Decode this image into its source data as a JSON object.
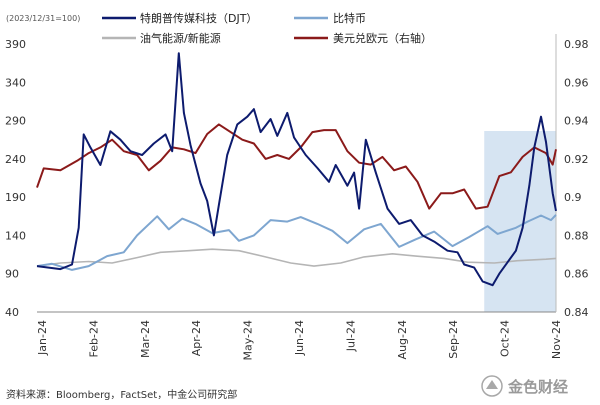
{
  "chart_data": {
    "type": "line",
    "note": "(2023/12/31=100)",
    "source": "资料来源：Bloomberg，FactSet，中金公司研究部",
    "watermark": "金色财经",
    "colors": {
      "djt": "#0d1b6e",
      "btc": "#7ea6d0",
      "energy": "#b5b5b5",
      "eurusd": "#8b1a1a",
      "shade": "#d6e4f2"
    },
    "left_axis": {
      "min": 40,
      "max": 390,
      "ticks": [
        "390",
        "340",
        "290",
        "240",
        "190",
        "140",
        "90",
        "40"
      ]
    },
    "right_axis": {
      "min": 0.84,
      "max": 0.98,
      "ticks": [
        "0.98",
        "0.96",
        "0.94",
        "0.92",
        "0.9",
        "0.88",
        "0.86",
        "0.84"
      ]
    },
    "x_labels": [
      "Jan-24",
      "Feb-24",
      "Mar-24",
      "Apr-24",
      "May-24",
      "Jun-24",
      "Jul-24",
      "Aug-24",
      "Sep-24",
      "Oct-24",
      "Nov-24"
    ],
    "shaded_range": [
      "2024-09-25",
      "2024-11-07"
    ],
    "series": [
      {
        "key": "djt",
        "name": "特朗普传媒科技（DJT）",
        "axis": "left",
        "points": [
          [
            "2024-01-01",
            100
          ],
          [
            "2024-01-08",
            98
          ],
          [
            "2024-01-15",
            96
          ],
          [
            "2024-01-22",
            102
          ],
          [
            "2024-01-26",
            150
          ],
          [
            "2024-01-29",
            272
          ],
          [
            "2024-02-02",
            255
          ],
          [
            "2024-02-08",
            232
          ],
          [
            "2024-02-14",
            276
          ],
          [
            "2024-02-20",
            265
          ],
          [
            "2024-02-26",
            250
          ],
          [
            "2024-03-04",
            245
          ],
          [
            "2024-03-11",
            260
          ],
          [
            "2024-03-18",
            272
          ],
          [
            "2024-03-22",
            250
          ],
          [
            "2024-03-26",
            378
          ],
          [
            "2024-03-29",
            300
          ],
          [
            "2024-04-02",
            258
          ],
          [
            "2024-04-08",
            208
          ],
          [
            "2024-04-12",
            185
          ],
          [
            "2024-04-16",
            140
          ],
          [
            "2024-04-19",
            180
          ],
          [
            "2024-04-24",
            245
          ],
          [
            "2024-04-30",
            285
          ],
          [
            "2024-05-06",
            295
          ],
          [
            "2024-05-10",
            305
          ],
          [
            "2024-05-14",
            275
          ],
          [
            "2024-05-20",
            292
          ],
          [
            "2024-05-24",
            270
          ],
          [
            "2024-05-30",
            300
          ],
          [
            "2024-06-03",
            268
          ],
          [
            "2024-06-10",
            245
          ],
          [
            "2024-06-17",
            228
          ],
          [
            "2024-06-24",
            210
          ],
          [
            "2024-06-28",
            232
          ],
          [
            "2024-07-05",
            205
          ],
          [
            "2024-07-09",
            222
          ],
          [
            "2024-07-12",
            175
          ],
          [
            "2024-07-16",
            265
          ],
          [
            "2024-07-22",
            222
          ],
          [
            "2024-07-29",
            175
          ],
          [
            "2024-08-05",
            155
          ],
          [
            "2024-08-12",
            160
          ],
          [
            "2024-08-19",
            140
          ],
          [
            "2024-08-26",
            132
          ],
          [
            "2024-09-03",
            120
          ],
          [
            "2024-09-09",
            118
          ],
          [
            "2024-09-13",
            102
          ],
          [
            "2024-09-19",
            98
          ],
          [
            "2024-09-24",
            80
          ],
          [
            "2024-09-30",
            75
          ],
          [
            "2024-10-04",
            90
          ],
          [
            "2024-10-09",
            105
          ],
          [
            "2024-10-14",
            120
          ],
          [
            "2024-10-18",
            150
          ],
          [
            "2024-10-22",
            205
          ],
          [
            "2024-10-25",
            255
          ],
          [
            "2024-10-29",
            295
          ],
          [
            "2024-11-01",
            262
          ],
          [
            "2024-11-05",
            195
          ],
          [
            "2024-11-07",
            172
          ]
        ]
      },
      {
        "key": "btc",
        "name": "比特币",
        "axis": "left",
        "points": [
          [
            "2024-01-01",
            100
          ],
          [
            "2024-01-10",
            103
          ],
          [
            "2024-01-22",
            95
          ],
          [
            "2024-02-01",
            100
          ],
          [
            "2024-02-12",
            113
          ],
          [
            "2024-02-22",
            118
          ],
          [
            "2024-03-01",
            140
          ],
          [
            "2024-03-13",
            165
          ],
          [
            "2024-03-20",
            148
          ],
          [
            "2024-03-28",
            162
          ],
          [
            "2024-04-05",
            155
          ],
          [
            "2024-04-15",
            143
          ],
          [
            "2024-04-25",
            147
          ],
          [
            "2024-05-01",
            133
          ],
          [
            "2024-05-10",
            140
          ],
          [
            "2024-05-20",
            160
          ],
          [
            "2024-05-30",
            158
          ],
          [
            "2024-06-07",
            164
          ],
          [
            "2024-06-17",
            155
          ],
          [
            "2024-06-26",
            146
          ],
          [
            "2024-07-05",
            130
          ],
          [
            "2024-07-15",
            148
          ],
          [
            "2024-07-25",
            155
          ],
          [
            "2024-08-05",
            125
          ],
          [
            "2024-08-15",
            135
          ],
          [
            "2024-08-26",
            145
          ],
          [
            "2024-09-06",
            126
          ],
          [
            "2024-09-16",
            138
          ],
          [
            "2024-09-27",
            152
          ],
          [
            "2024-10-03",
            142
          ],
          [
            "2024-10-14",
            150
          ],
          [
            "2024-10-21",
            158
          ],
          [
            "2024-10-29",
            166
          ],
          [
            "2024-11-04",
            160
          ],
          [
            "2024-11-07",
            167
          ]
        ]
      },
      {
        "key": "energy",
        "name": "油气能源/新能源",
        "axis": "left",
        "points": [
          [
            "2024-01-01",
            100
          ],
          [
            "2024-01-15",
            104
          ],
          [
            "2024-02-01",
            106
          ],
          [
            "2024-02-15",
            104
          ],
          [
            "2024-03-01",
            111
          ],
          [
            "2024-03-15",
            118
          ],
          [
            "2024-04-01",
            120
          ],
          [
            "2024-04-15",
            122
          ],
          [
            "2024-05-01",
            120
          ],
          [
            "2024-05-15",
            113
          ],
          [
            "2024-06-01",
            104
          ],
          [
            "2024-06-15",
            100
          ],
          [
            "2024-07-01",
            104
          ],
          [
            "2024-07-15",
            112
          ],
          [
            "2024-08-01",
            116
          ],
          [
            "2024-08-15",
            113
          ],
          [
            "2024-09-01",
            110
          ],
          [
            "2024-09-15",
            105
          ],
          [
            "2024-10-01",
            104
          ],
          [
            "2024-10-15",
            107
          ],
          [
            "2024-11-01",
            109
          ],
          [
            "2024-11-07",
            110
          ]
        ]
      },
      {
        "key": "eurusd",
        "name": "美元兑欧元（右轴）",
        "axis": "right",
        "points": [
          [
            "2024-01-01",
            0.905
          ],
          [
            "2024-01-05",
            0.915
          ],
          [
            "2024-01-15",
            0.914
          ],
          [
            "2024-01-25",
            0.919
          ],
          [
            "2024-02-01",
            0.923
          ],
          [
            "2024-02-08",
            0.926
          ],
          [
            "2024-02-15",
            0.93
          ],
          [
            "2024-02-22",
            0.924
          ],
          [
            "2024-03-01",
            0.922
          ],
          [
            "2024-03-08",
            0.914
          ],
          [
            "2024-03-15",
            0.919
          ],
          [
            "2024-03-22",
            0.926
          ],
          [
            "2024-03-29",
            0.925
          ],
          [
            "2024-04-05",
            0.923
          ],
          [
            "2024-04-12",
            0.933
          ],
          [
            "2024-04-19",
            0.938
          ],
          [
            "2024-04-26",
            0.934
          ],
          [
            "2024-05-03",
            0.93
          ],
          [
            "2024-05-10",
            0.928
          ],
          [
            "2024-05-17",
            0.92
          ],
          [
            "2024-05-24",
            0.922
          ],
          [
            "2024-05-31",
            0.92
          ],
          [
            "2024-06-07",
            0.926
          ],
          [
            "2024-06-14",
            0.934
          ],
          [
            "2024-06-21",
            0.935
          ],
          [
            "2024-06-28",
            0.935
          ],
          [
            "2024-07-05",
            0.924
          ],
          [
            "2024-07-12",
            0.918
          ],
          [
            "2024-07-19",
            0.917
          ],
          [
            "2024-07-26",
            0.921
          ],
          [
            "2024-08-02",
            0.914
          ],
          [
            "2024-08-09",
            0.916
          ],
          [
            "2024-08-16",
            0.908
          ],
          [
            "2024-08-23",
            0.894
          ],
          [
            "2024-08-30",
            0.902
          ],
          [
            "2024-09-06",
            0.902
          ],
          [
            "2024-09-13",
            0.904
          ],
          [
            "2024-09-20",
            0.894
          ],
          [
            "2024-09-27",
            0.895
          ],
          [
            "2024-10-04",
            0.911
          ],
          [
            "2024-10-11",
            0.913
          ],
          [
            "2024-10-18",
            0.921
          ],
          [
            "2024-10-25",
            0.926
          ],
          [
            "2024-11-01",
            0.923
          ],
          [
            "2024-11-05",
            0.917
          ],
          [
            "2024-11-07",
            0.925
          ]
        ]
      }
    ]
  }
}
